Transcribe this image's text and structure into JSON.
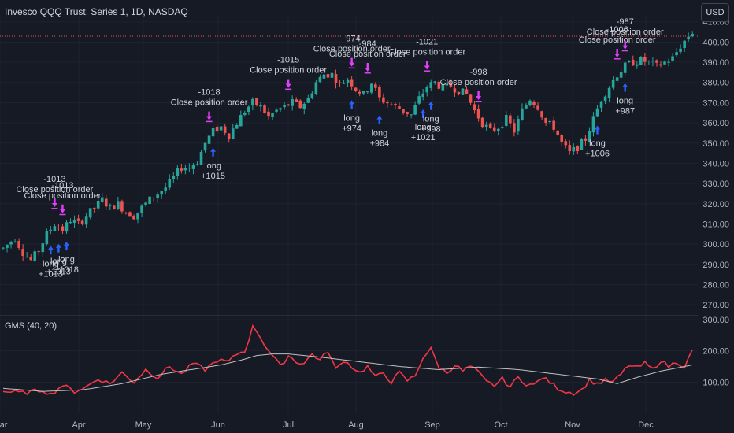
{
  "header": {
    "title": "Invesco QQQ Trust, Series 1, 1D, NASDAQ"
  },
  "currency_button": "USD",
  "indicator": {
    "label": "GMS (40, 20)"
  },
  "colors": {
    "bg": "#161a25",
    "grid": "#1f2330",
    "up": "#26a69a",
    "down": "#ef5350",
    "long": "#2962ff",
    "close": "#e040fb",
    "gms": "#f23645",
    "gms_ma": "#c0c0c0"
  },
  "chart_data": [
    {
      "type": "candlestick",
      "title": "Invesco QQQ Trust, Series 1, 1D, NASDAQ",
      "x_ticks": [
        "Mar",
        "Apr",
        "May",
        "Jun",
        "Jul",
        "Aug",
        "Sep",
        "Oct",
        "Nov",
        "Dec"
      ],
      "y_ticks": [
        "270.00",
        "280.00",
        "290.00",
        "300.00",
        "310.00",
        "320.00",
        "330.00",
        "340.00",
        "350.00",
        "360.00",
        "370.00",
        "380.00",
        "390.00",
        "400.00",
        "410.00"
      ],
      "ylim": [
        265,
        413
      ],
      "price_anchors": [
        [
          0,
          298
        ],
        [
          3,
          303
        ],
        [
          5,
          296
        ],
        [
          7,
          292
        ],
        [
          9,
          297
        ],
        [
          11,
          305
        ],
        [
          13,
          310
        ],
        [
          15,
          307
        ],
        [
          17,
          312
        ],
        [
          19,
          310
        ],
        [
          21,
          314
        ],
        [
          23,
          318
        ],
        [
          25,
          322
        ],
        [
          27,
          318
        ],
        [
          29,
          320
        ],
        [
          31,
          316
        ],
        [
          33,
          314
        ],
        [
          35,
          318
        ],
        [
          37,
          322
        ],
        [
          39,
          325
        ],
        [
          41,
          328
        ],
        [
          43,
          333
        ],
        [
          45,
          338
        ],
        [
          47,
          338
        ],
        [
          49,
          341
        ],
        [
          51,
          350
        ],
        [
          53,
          356
        ],
        [
          55,
          358
        ],
        [
          57,
          354
        ],
        [
          59,
          360
        ],
        [
          61,
          366
        ],
        [
          63,
          370
        ],
        [
          65,
          368
        ],
        [
          67,
          363
        ],
        [
          69,
          366
        ],
        [
          71,
          368
        ],
        [
          73,
          370
        ],
        [
          75,
          368
        ],
        [
          77,
          372
        ],
        [
          79,
          380
        ],
        [
          81,
          384
        ],
        [
          83,
          384
        ],
        [
          85,
          379
        ],
        [
          87,
          382
        ],
        [
          89,
          377
        ],
        [
          91,
          374
        ],
        [
          93,
          380
        ],
        [
          95,
          372
        ],
        [
          97,
          370
        ],
        [
          99,
          368
        ],
        [
          101,
          366
        ],
        [
          103,
          364
        ],
        [
          105,
          372
        ],
        [
          107,
          378
        ],
        [
          109,
          380
        ],
        [
          111,
          377
        ],
        [
          113,
          378
        ],
        [
          115,
          376
        ],
        [
          117,
          374
        ],
        [
          119,
          366
        ],
        [
          121,
          360
        ],
        [
          123,
          356
        ],
        [
          125,
          358
        ],
        [
          127,
          362
        ],
        [
          129,
          356
        ],
        [
          131,
          366
        ],
        [
          133,
          372
        ],
        [
          135,
          368
        ],
        [
          137,
          360
        ],
        [
          139,
          358
        ],
        [
          141,
          350
        ],
        [
          143,
          345
        ],
        [
          145,
          348
        ],
        [
          147,
          352
        ],
        [
          149,
          362
        ],
        [
          151,
          372
        ],
        [
          153,
          378
        ],
        [
          155,
          384
        ],
        [
          157,
          388
        ],
        [
          159,
          390
        ],
        [
          161,
          391
        ],
        [
          163,
          390
        ],
        [
          165,
          388
        ],
        [
          167,
          390
        ],
        [
          169,
          392
        ],
        [
          171,
          398
        ],
        [
          173,
          403
        ],
        [
          174,
          405
        ]
      ],
      "trade_markers": [
        {
          "type": "long",
          "label": [
            "long",
            "+1013"
          ],
          "index": 12
        },
        {
          "type": "long",
          "label": [
            "long",
            "+1013"
          ],
          "index": 14
        },
        {
          "type": "long",
          "label": [
            "long",
            "+1018"
          ],
          "index": 16
        },
        {
          "type": "close",
          "label": [
            "-1013",
            "Close position order"
          ],
          "index": 13
        },
        {
          "type": "close",
          "label": [
            "-1013",
            "Close position order"
          ],
          "index": 15
        },
        {
          "type": "long",
          "label": [
            "long",
            "+1015"
          ],
          "index": 53
        },
        {
          "type": "close",
          "label": [
            "-1018",
            "Close position order"
          ],
          "index": 52
        },
        {
          "type": "close",
          "label": [
            "-1015",
            "Close position order"
          ],
          "index": 72
        },
        {
          "type": "long",
          "label": [
            "long",
            "+974"
          ],
          "index": 88
        },
        {
          "type": "close",
          "label": [
            "-974",
            "Close position order"
          ],
          "index": 88
        },
        {
          "type": "long",
          "label": [
            "long",
            "+984"
          ],
          "index": 95
        },
        {
          "type": "close",
          "label": [
            "-984",
            "Close position order"
          ],
          "index": 92
        },
        {
          "type": "long",
          "label": [
            "long",
            "+1021"
          ],
          "index": 106
        },
        {
          "type": "long",
          "label": [
            "long",
            "+998"
          ],
          "index": 108
        },
        {
          "type": "close",
          "label": [
            "-1021",
            "Close position order"
          ],
          "index": 107
        },
        {
          "type": "close",
          "label": [
            "-998",
            "Close position order"
          ],
          "index": 120
        },
        {
          "type": "long",
          "label": [
            "long",
            "+1006"
          ],
          "index": 150
        },
        {
          "type": "long",
          "label": [
            "long",
            "+987"
          ],
          "index": 157
        },
        {
          "type": "close",
          "label": [
            "-1006",
            "Close position order"
          ],
          "index": 155
        },
        {
          "type": "close",
          "label": [
            "-987",
            "Close position order"
          ],
          "index": 157
        }
      ]
    },
    {
      "type": "line",
      "title": "GMS (40, 20)",
      "y_ticks": [
        "100.00",
        "200.00",
        "300.00"
      ],
      "ylim": [
        0,
        310
      ],
      "series": [
        {
          "name": "GMS",
          "anchors": [
            [
              0,
              70
            ],
            [
              5,
              65
            ],
            [
              10,
              75
            ],
            [
              12,
              60
            ],
            [
              15,
              90
            ],
            [
              18,
              70
            ],
            [
              21,
              85
            ],
            [
              24,
              110
            ],
            [
              27,
              95
            ],
            [
              30,
              130
            ],
            [
              33,
              100
            ],
            [
              36,
              140
            ],
            [
              39,
              115
            ],
            [
              42,
              150
            ],
            [
              45,
              125
            ],
            [
              48,
              160
            ],
            [
              51,
              140
            ],
            [
              54,
              170
            ],
            [
              57,
              165
            ],
            [
              59,
              190
            ],
            [
              61,
              200
            ],
            [
              63,
              275
            ],
            [
              64,
              265
            ],
            [
              66,
              220
            ],
            [
              68,
              185
            ],
            [
              70,
              150
            ],
            [
              72,
              185
            ],
            [
              74,
              165
            ],
            [
              76,
              160
            ],
            [
              78,
              190
            ],
            [
              80,
              170
            ],
            [
              82,
              200
            ],
            [
              84,
              140
            ],
            [
              86,
              170
            ],
            [
              88,
              150
            ],
            [
              90,
              130
            ],
            [
              92,
              150
            ],
            [
              94,
              115
            ],
            [
              96,
              130
            ],
            [
              98,
              100
            ],
            [
              100,
              130
            ],
            [
              102,
              105
            ],
            [
              104,
              120
            ],
            [
              106,
              180
            ],
            [
              108,
              205
            ],
            [
              110,
              150
            ],
            [
              112,
              130
            ],
            [
              114,
              155
            ],
            [
              116,
              135
            ],
            [
              118,
              150
            ],
            [
              120,
              130
            ],
            [
              122,
              100
            ],
            [
              124,
              90
            ],
            [
              126,
              110
            ],
            [
              128,
              85
            ],
            [
              130,
              115
            ],
            [
              132,
              95
            ],
            [
              134,
              90
            ],
            [
              136,
              115
            ],
            [
              138,
              100
            ],
            [
              140,
              80
            ],
            [
              142,
              70
            ],
            [
              144,
              65
            ],
            [
              146,
              75
            ],
            [
              148,
              105
            ],
            [
              150,
              95
            ],
            [
              152,
              105
            ],
            [
              154,
              100
            ],
            [
              156,
              125
            ],
            [
              158,
              155
            ],
            [
              160,
              145
            ],
            [
              162,
              160
            ],
            [
              164,
              140
            ],
            [
              166,
              170
            ],
            [
              168,
              150
            ],
            [
              170,
              165
            ],
            [
              172,
              150
            ],
            [
              174,
              200
            ]
          ]
        },
        {
          "name": "MA",
          "anchors": [
            [
              0,
              80
            ],
            [
              10,
              70
            ],
            [
              20,
              75
            ],
            [
              30,
              95
            ],
            [
              40,
              125
            ],
            [
              50,
              145
            ],
            [
              55,
              155
            ],
            [
              60,
              170
            ],
            [
              64,
              185
            ],
            [
              68,
              190
            ],
            [
              72,
              190
            ],
            [
              80,
              180
            ],
            [
              90,
              165
            ],
            [
              100,
              150
            ],
            [
              110,
              140
            ],
            [
              120,
              148
            ],
            [
              130,
              140
            ],
            [
              140,
              125
            ],
            [
              150,
              110
            ],
            [
              155,
              95
            ],
            [
              160,
              115
            ],
            [
              166,
              135
            ],
            [
              170,
              145
            ],
            [
              174,
              155
            ]
          ]
        }
      ]
    }
  ]
}
